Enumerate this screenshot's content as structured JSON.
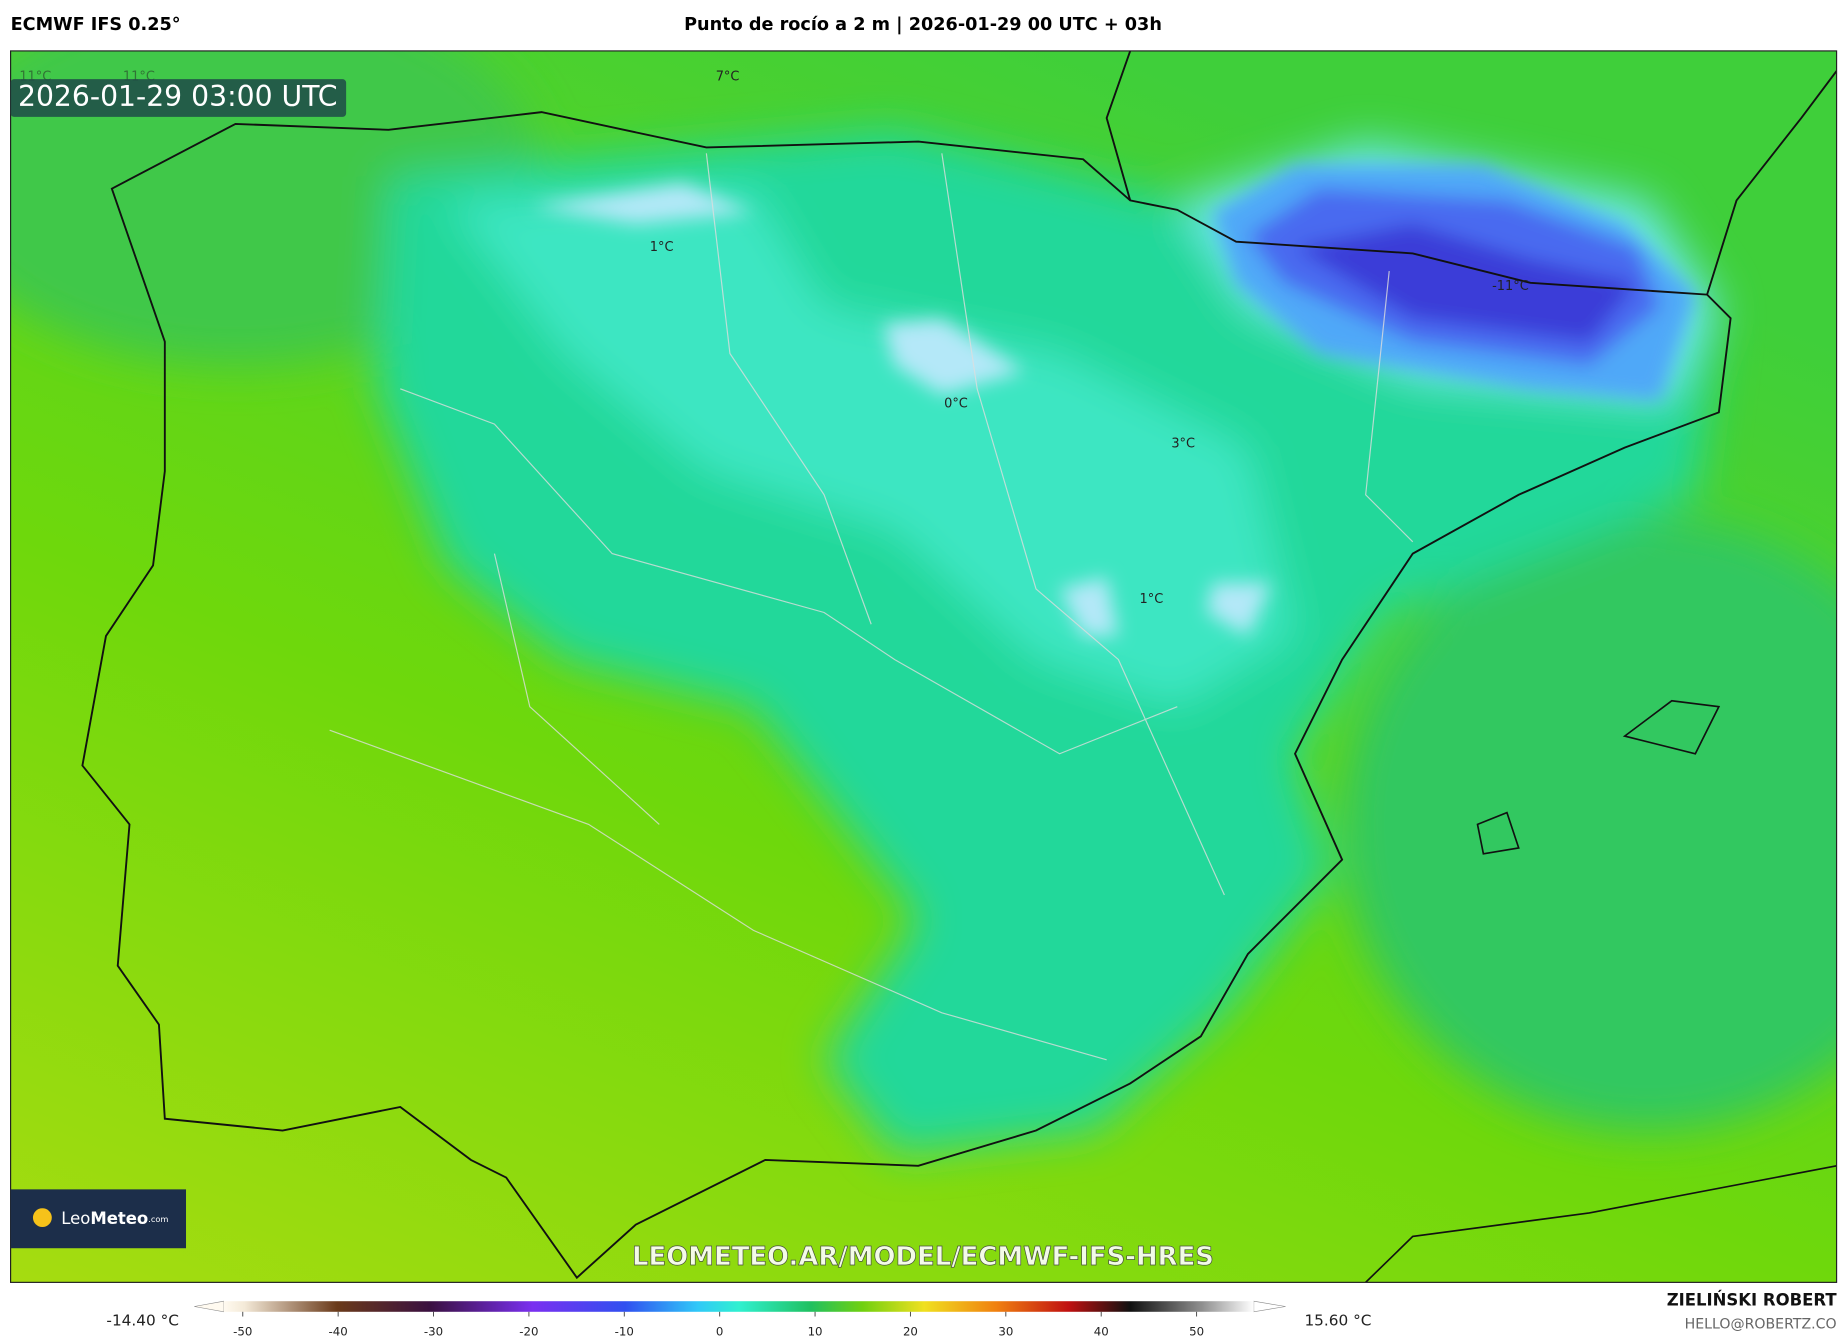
{
  "header": {
    "model": "ECMWF IFS 0.25°",
    "title": "Punto de rocío a 2 m | 2026-01-29 00 UTC + 03h"
  },
  "map": {
    "timestamp": "2026-01-29 03:00 UTC",
    "labels": [
      "11°C",
      "11°C",
      "7°C",
      "1°C",
      "0°C",
      "3°C",
      "1°C",
      "-11°C"
    ],
    "watermark": "LEOMETEO.AR/MODEL/ECMWF-IFS-HRES",
    "logo": {
      "name_a": "Leo",
      "name_b": "Meteo",
      "suffix": ".com"
    }
  },
  "colorbar": {
    "min_label": "-14.40 °C",
    "max_label": "15.60 °C",
    "lim": [
      -52,
      56
    ],
    "ticks": [
      -50,
      -40,
      -30,
      -20,
      -10,
      0,
      10,
      20,
      30,
      40,
      50
    ]
  },
  "footer": {
    "author": "ZIELIŃSKI ROBERT",
    "email": "HELLO@ROBERTZ.CO"
  }
}
